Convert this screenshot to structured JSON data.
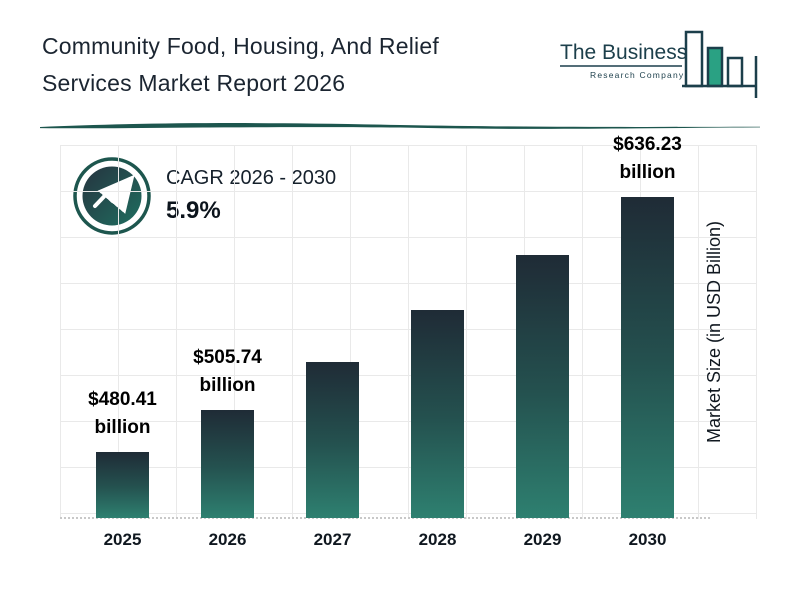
{
  "header": {
    "title_line1": "Community Food, Housing, And Relief",
    "title_line2": "Services Market Report 2026"
  },
  "logo": {
    "name": "The Business",
    "subname": "Research Company"
  },
  "cagr": {
    "label": "CAGR 2026 - 2030",
    "value": "5.9%"
  },
  "chart_data": {
    "type": "bar",
    "title": "Community Food, Housing, And Relief Services Market Report 2026",
    "categories": [
      "2025",
      "2026",
      "2027",
      "2028",
      "2029",
      "2030"
    ],
    "values": [
      480.41,
      505.74,
      535.58,
      567.18,
      600.64,
      636.23
    ],
    "bar_labels": [
      [
        "$480.41",
        "billion"
      ],
      [
        "$505.74",
        "billion"
      ],
      null,
      null,
      null,
      [
        "$636.23",
        "billion"
      ]
    ],
    "xlabel": "",
    "ylabel": "Market Size (in USD Billion)",
    "ylim": [
      440,
      660
    ],
    "grid": true,
    "legend": false,
    "colors": {
      "bar_top": "#1f2b36",
      "bar_mid": "#24514f",
      "bar_bottom": "#2e8070",
      "accent": "#1d564e",
      "logo": "#1c3f4b",
      "logo_fill_bar": "#2aa183"
    }
  }
}
